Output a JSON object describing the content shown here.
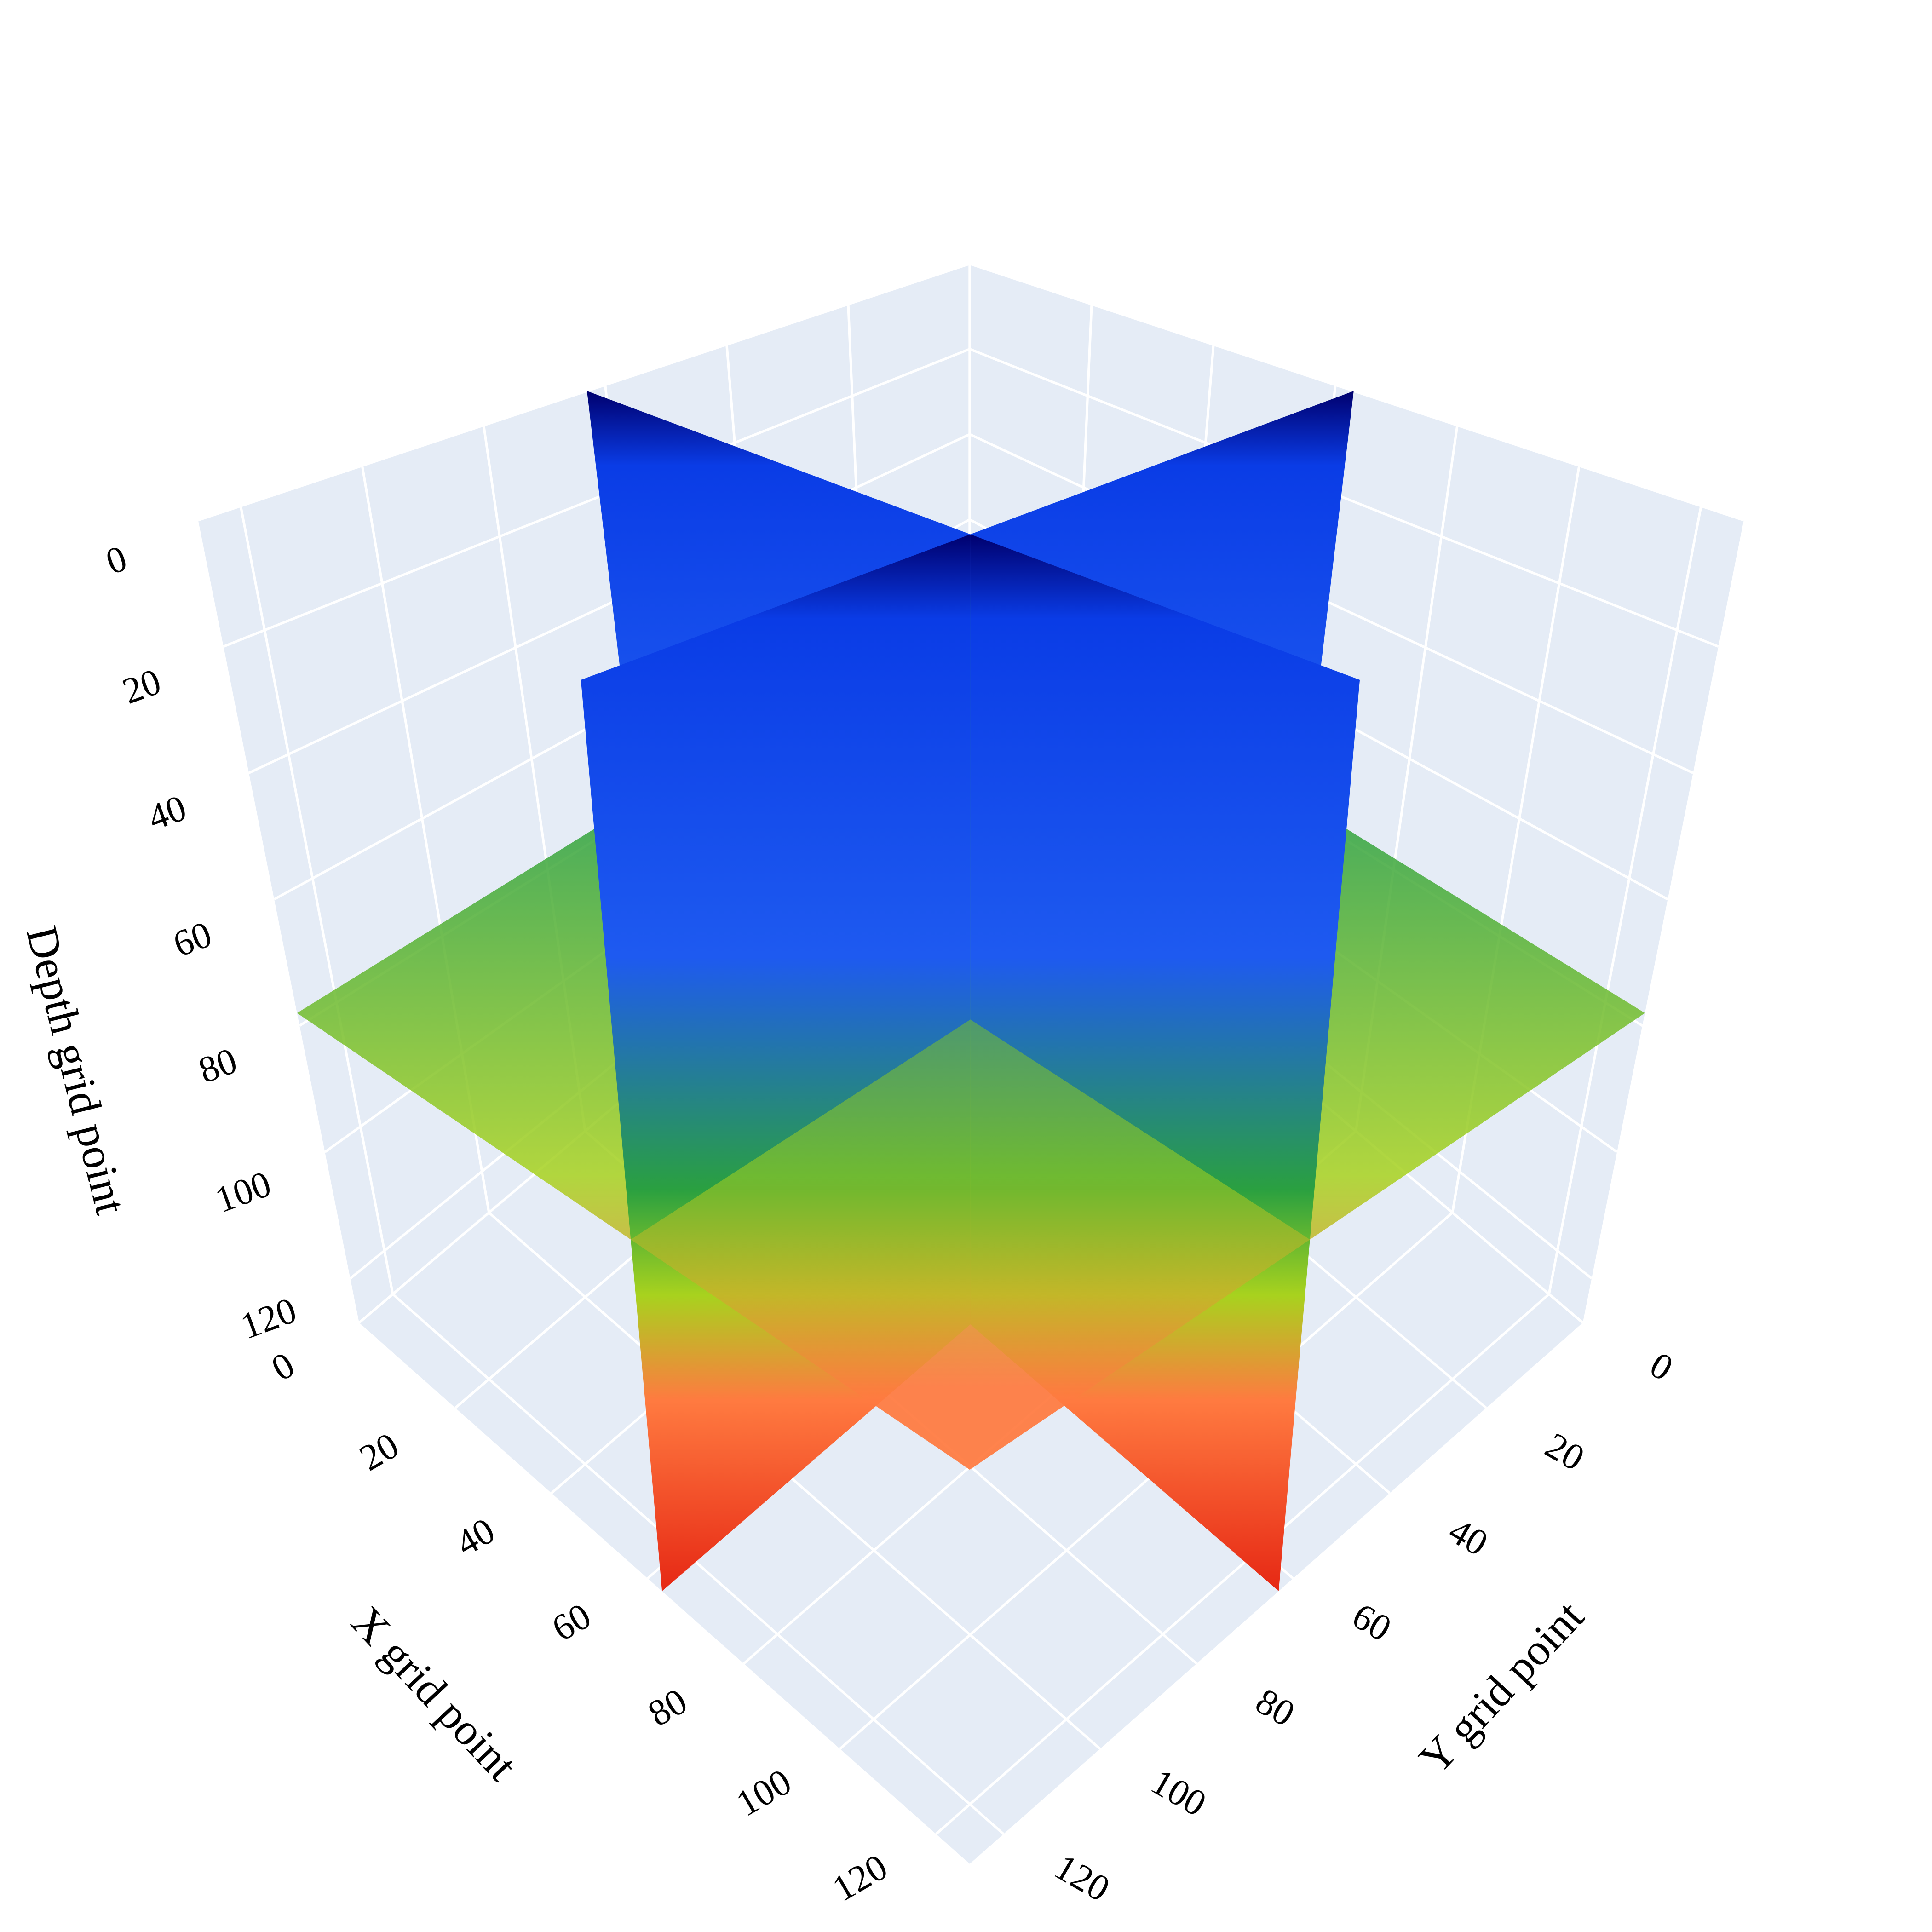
{
  "chart_data": {
    "type": "slice3d",
    "x_label": "X grid point",
    "y_label": "Y grid point",
    "z_label": "Depth grid point",
    "xlim": [
      0,
      127
    ],
    "ylim": [
      0,
      127
    ],
    "zlim": [
      0,
      127
    ],
    "xticks": [
      0,
      20,
      40,
      60,
      80,
      100,
      120
    ],
    "yticks": [
      0,
      20,
      40,
      60,
      80,
      100,
      120
    ],
    "zticks": [
      0,
      20,
      40,
      60,
      80,
      100,
      120
    ],
    "z_reversed": true,
    "slices": {
      "x": 63,
      "y": 63,
      "depth": 78
    },
    "colorscale": [
      "#00006e",
      "#0a3ce6",
      "#1e5af0",
      "#2aa040",
      "#a8d21e",
      "#ff7a40",
      "#e62814"
    ],
    "background": "#e5ecf6",
    "grid": true
  }
}
